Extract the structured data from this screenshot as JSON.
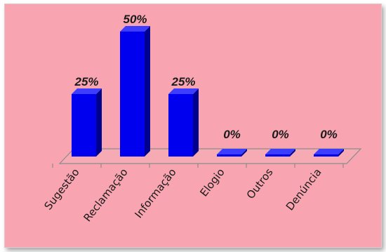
{
  "chart_data": {
    "type": "bar",
    "categories": [
      "Sugestão",
      "Reclamação",
      "Informação",
      "Elogio",
      "Outros",
      "Denúncia"
    ],
    "values": [
      25,
      50,
      25,
      0,
      0,
      0
    ],
    "data_labels": [
      "25%",
      "50%",
      "25%",
      "0%",
      "0%",
      "0%"
    ],
    "unit": "%",
    "ylim": [
      0,
      50
    ],
    "grid": false,
    "legend": "none",
    "title": "",
    "xlabel": "",
    "ylabel": "",
    "colors": {
      "background": "#f8a5b1",
      "bar_front": "#0000ee",
      "bar_side": "#00008f",
      "bar_top": "#3d3dff",
      "floor": "#f6aab4",
      "axis": "#8c8c8c"
    }
  }
}
